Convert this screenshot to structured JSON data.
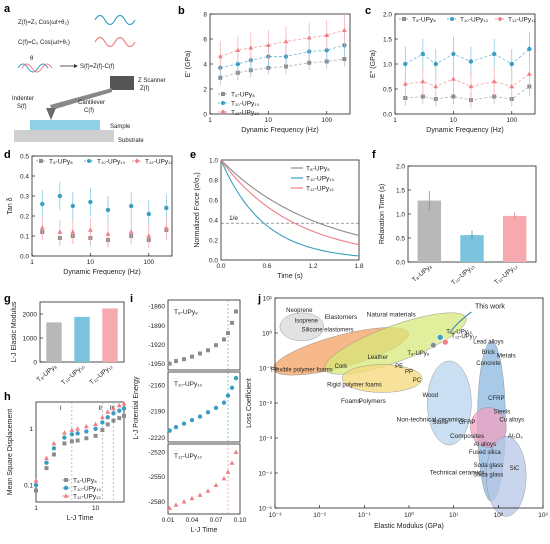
{
  "colors": {
    "gray": "#8c8c8c",
    "blue": "#3a9ec2",
    "pink": "#ef7f86",
    "lightgray": "#b8b8b8",
    "lightblue": "#7cc4de",
    "lightpink": "#f6a9ae"
  },
  "panel_labels": [
    "a",
    "b",
    "c",
    "d",
    "e",
    "f",
    "g",
    "h",
    "i",
    "j"
  ],
  "schematic": {
    "eq1": "Z(f)=Z₀ Cos(ωt+θ₂)",
    "eq2": "C(f)=C₀ Cos(ωt+θ₁)",
    "theta": "θ",
    "eq3": "S(f)=Z(f)-C(f)",
    "scanner": "Z Scanner",
    "scanner_f": "Z(f)",
    "cantilever": "Cantilever",
    "cantilever_f": "C(f)",
    "indenter": "Indenter",
    "indenter_f": "S(f)",
    "sample": "Sample",
    "substrate": "Substrate"
  },
  "series_names": [
    "T₈-UPy₈",
    "T₁₀-UPy₁₀",
    "T₁₂-UPy₁₂"
  ],
  "chart_data": [
    {
      "id": "b",
      "type": "line",
      "xlabel": "Dynamic Frequency (Hz)",
      "ylabel": "E' (GPa)",
      "xscale": "log",
      "xlim": [
        1,
        250
      ],
      "ylim": [
        0,
        8
      ],
      "x": [
        1.5,
        3,
        5,
        10,
        20,
        50,
        100,
        200
      ],
      "series": [
        {
          "name": "T₈-UPy₈",
          "values": [
            2.9,
            3.3,
            3.5,
            3.7,
            3.8,
            4.1,
            4.2,
            4.4
          ],
          "err": [
            0.6,
            0.6,
            0.6,
            0.5,
            0.6,
            0.6,
            0.6,
            0.6
          ]
        },
        {
          "name": "T₁₀-UPy₁₀",
          "values": [
            3.7,
            4.0,
            4.3,
            4.6,
            4.6,
            5.0,
            5.1,
            5.5
          ],
          "err": [
            0.8,
            0.8,
            0.9,
            0.9,
            0.9,
            0.9,
            0.9,
            1.0
          ]
        },
        {
          "name": "T₁₂-UPy₁₂",
          "values": [
            4.6,
            5.1,
            5.3,
            5.5,
            5.8,
            6.1,
            6.3,
            6.7
          ],
          "err": [
            1.2,
            1.1,
            1.2,
            1.2,
            1.2,
            1.2,
            1.2,
            1.3
          ]
        }
      ]
    },
    {
      "id": "c",
      "type": "line",
      "xlabel": "Dynamic Frequency (Hz)",
      "ylabel": "E'' (GPa)",
      "xscale": "log",
      "xlim": [
        1,
        250
      ],
      "ylim": [
        0,
        2
      ],
      "x": [
        1.5,
        3,
        5,
        10,
        20,
        50,
        100,
        200
      ],
      "series": [
        {
          "name": "T₈-UPy₈",
          "values": [
            0.32,
            0.35,
            0.3,
            0.35,
            0.28,
            0.35,
            0.3,
            0.55
          ],
          "err": [
            0.15,
            0.15,
            0.15,
            0.15,
            0.15,
            0.15,
            0.15,
            0.2
          ]
        },
        {
          "name": "T₁₀-UPy₁₀",
          "values": [
            1.0,
            1.2,
            1.0,
            1.2,
            1.05,
            1.2,
            1.0,
            1.3
          ],
          "err": [
            0.35,
            0.3,
            0.3,
            0.35,
            0.3,
            0.3,
            0.3,
            0.35
          ]
        },
        {
          "name": "T₁₂-UPy₁₂",
          "values": [
            0.6,
            0.65,
            0.55,
            0.7,
            0.55,
            0.65,
            0.55,
            0.8
          ],
          "err": [
            0.3,
            0.3,
            0.3,
            0.3,
            0.3,
            0.3,
            0.3,
            0.35
          ]
        }
      ]
    },
    {
      "id": "d",
      "type": "scatter",
      "xlabel": "Dynamic Frequency (Hz)",
      "ylabel": "Tan δ",
      "xscale": "log",
      "xlim": [
        1,
        250
      ],
      "ylim": [
        0,
        0.5
      ],
      "x": [
        1.5,
        3,
        5,
        10,
        20,
        50,
        100,
        200
      ],
      "series": [
        {
          "name": "T₈-UPy₈",
          "values": [
            0.12,
            0.09,
            0.1,
            0.09,
            0.08,
            0.1,
            0.08,
            0.13
          ],
          "err": [
            0.04,
            0.04,
            0.04,
            0.04,
            0.04,
            0.04,
            0.04,
            0.05
          ]
        },
        {
          "name": "T₁₀-UPy₁₀",
          "values": [
            0.26,
            0.3,
            0.25,
            0.27,
            0.23,
            0.25,
            0.21,
            0.24
          ],
          "err": [
            0.07,
            0.07,
            0.07,
            0.07,
            0.07,
            0.07,
            0.07,
            0.07
          ]
        },
        {
          "name": "T₁₂-UPy₁₂",
          "values": [
            0.14,
            0.12,
            0.12,
            0.13,
            0.11,
            0.12,
            0.1,
            0.14
          ],
          "err": [
            0.06,
            0.06,
            0.06,
            0.06,
            0.06,
            0.06,
            0.06,
            0.06
          ]
        }
      ]
    },
    {
      "id": "e",
      "type": "line",
      "xlabel": "Time (s)",
      "ylabel": "Normalized Force (σ/σ₀)",
      "xlim": [
        0,
        1.8
      ],
      "ylim": [
        0,
        1
      ],
      "xticks": [
        "0.0",
        "0.6",
        "1.2",
        "1.8"
      ],
      "yticks": [
        "0.0",
        "0.2",
        "0.4",
        "0.6",
        "0.8",
        "1.0"
      ],
      "reference": {
        "label": "1/e",
        "y": 0.368
      },
      "series": [
        {
          "name": "T₈-UPy₈",
          "tau": 1.28
        },
        {
          "name": "T₁₀-UPy₁₀",
          "tau": 0.56
        },
        {
          "name": "T₁₂-UPy₁₂",
          "tau": 0.96
        }
      ]
    },
    {
      "id": "f",
      "type": "bar",
      "ylabel": "Relaxation Time (s)",
      "categories": [
        "T₈-UPy₈",
        "T₁₀-UPy₁₀",
        "T₁₂-UPy₁₂"
      ],
      "values": [
        1.28,
        0.56,
        0.96
      ],
      "err": [
        0.2,
        0.1,
        0.08
      ],
      "ylim": [
        0,
        2
      ],
      "yticks": [
        "0.0",
        "0.5",
        "1.0",
        "1.5",
        "2.0"
      ]
    },
    {
      "id": "g",
      "type": "bar",
      "ylabel": "L-J Elastic Modulus",
      "categories": [
        "T₈-UPy₈",
        "T₁₀-UPy₁₀",
        "T₁₂-UPy₁₂"
      ],
      "values": [
        1650,
        1880,
        2230
      ],
      "ylim": [
        0,
        2500
      ],
      "yticks": [
        "0",
        "1000",
        "2000"
      ]
    },
    {
      "id": "h",
      "type": "scatter",
      "xlabel": "L-J Time",
      "ylabel": "Mean Square Displacement",
      "xscale": "log",
      "yscale": "log",
      "xlim": [
        1,
        30
      ],
      "ylim": [
        0.05,
        3
      ],
      "regions": [
        "I",
        "II",
        "III"
      ],
      "series": [
        {
          "name": "T₈-UPy₈",
          "x": [
            1,
            1.5,
            2,
            3,
            4,
            5,
            7,
            10,
            13,
            16,
            20,
            25,
            30
          ],
          "values": [
            0.08,
            0.2,
            0.35,
            0.55,
            0.6,
            0.62,
            0.68,
            0.75,
            0.95,
            1.2,
            1.4,
            1.55,
            1.7
          ]
        },
        {
          "name": "T₁₀-UPy₁₀",
          "x": [
            1,
            1.5,
            2,
            3,
            4,
            5,
            7,
            10,
            13,
            16,
            20,
            25,
            30
          ],
          "values": [
            0.1,
            0.25,
            0.45,
            0.7,
            0.8,
            0.83,
            0.9,
            1.0,
            1.3,
            1.6,
            1.9,
            2.1,
            2.3
          ]
        },
        {
          "name": "T₁₂-UPy₁₂",
          "x": [
            1,
            1.5,
            2,
            3,
            4,
            5,
            7,
            10,
            13,
            16,
            20,
            25,
            30
          ],
          "values": [
            0.12,
            0.3,
            0.55,
            0.85,
            0.95,
            1.0,
            1.1,
            1.2,
            1.6,
            2.0,
            2.3,
            2.6,
            2.8
          ]
        }
      ]
    },
    {
      "id": "i",
      "type": "scatter",
      "xlabel": "L-J Time",
      "ylabel": "L-J Potential Energy",
      "xlim": [
        0.01,
        0.1
      ],
      "xticks": [
        "0.01",
        "0.04",
        "0.07",
        "0.10"
      ],
      "subplots": [
        {
          "name": "T₈-UPy₈",
          "yticks": [
            "-1860",
            "-1890",
            "-1920",
            "-1950"
          ],
          "ylim": [
            -1960,
            -1850
          ],
          "x": [
            0.012,
            0.02,
            0.03,
            0.04,
            0.05,
            0.06,
            0.07,
            0.08,
            0.085,
            0.09,
            0.095
          ],
          "values": [
            -1950,
            -1946,
            -1943,
            -1939,
            -1934,
            -1929,
            -1921,
            -1912,
            -1902,
            -1886,
            -1868
          ]
        },
        {
          "name": "T₁₀-UPy₁₀",
          "yticks": [
            "-2160",
            "-2190",
            "-2220"
          ],
          "ylim": [
            -2225,
            -2145
          ],
          "x": [
            0.012,
            0.02,
            0.03,
            0.04,
            0.05,
            0.06,
            0.07,
            0.08,
            0.085,
            0.09,
            0.095
          ],
          "values": [
            -2212,
            -2208,
            -2204,
            -2200,
            -2196,
            -2191,
            -2186,
            -2180,
            -2172,
            -2163,
            -2152
          ]
        },
        {
          "name": "T₁₂-UPy₁₂",
          "yticks": [
            "-2520",
            "-2550",
            "-2580"
          ],
          "ylim": [
            -2595,
            -2510
          ],
          "x": [
            0.012,
            0.02,
            0.03,
            0.04,
            0.05,
            0.06,
            0.07,
            0.08,
            0.085,
            0.09,
            0.095
          ],
          "values": [
            -2588,
            -2584,
            -2580,
            -2576,
            -2572,
            -2567,
            -2560,
            -2552,
            -2544,
            -2533,
            -2520
          ]
        }
      ]
    },
    {
      "id": "j",
      "type": "scatter",
      "xlabel": "Elastic Modulus (GPa)",
      "ylabel": "Loss Coefficient",
      "xscale": "log",
      "yscale": "log",
      "xlim": [
        0.001,
        1000
      ],
      "ylim": [
        1e-05,
        10
      ],
      "xticks": [
        "10⁻³",
        "10⁻²",
        "10⁻¹",
        "10⁰",
        "10¹",
        "10²",
        "10³"
      ],
      "yticks": [
        "10⁻⁵",
        "10⁻⁴",
        "10⁻³",
        "10⁻²",
        "10⁻¹",
        "10⁰",
        "10¹"
      ],
      "families": [
        "Elastomers",
        "Natural materials",
        "Polymers",
        "Foams",
        "Metals",
        "Composites",
        "Non-technical ceramics",
        "Technical ceramics"
      ],
      "materials": [
        "Neoprene",
        "Isoprene",
        "Silicone elastomers",
        "Flexible polymer foams",
        "Cork",
        "Leather",
        "Rigid polymer foams",
        "PE",
        "PP",
        "PC",
        "Wood",
        "Stone",
        "GFRP",
        "Lead alloys",
        "Brick",
        "Concrete",
        "CFRP",
        "Steels",
        "Cu alloys",
        "Al₂O₃",
        "Al alloys",
        "Fused silica",
        "Soda glass",
        "Silica glass",
        "SiC"
      ],
      "annotation": "This work",
      "work_points": [
        {
          "name": "T₈-UPy₈",
          "x": 3.5,
          "y": 0.45
        },
        {
          "name": "T₁₀-UPy₁₀",
          "x": 5.0,
          "y": 0.75
        },
        {
          "name": "T₁₂-UPy₁₂",
          "x": 6.5,
          "y": 0.55
        }
      ]
    }
  ]
}
